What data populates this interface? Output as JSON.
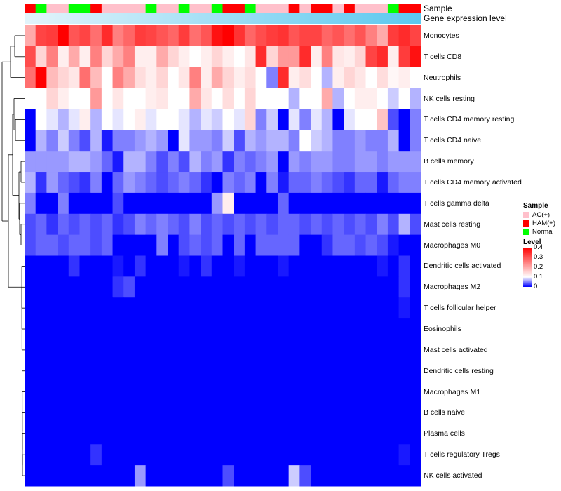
{
  "chart_data": {
    "type": "heatmap",
    "title": "",
    "annotation_tracks": [
      {
        "name": "Sample",
        "kind": "categorical"
      },
      {
        "name": "Gene expression level",
        "kind": "continuous"
      }
    ],
    "sample_groups": [
      {
        "name": "AC(+)",
        "color": "#ffc0cb"
      },
      {
        "name": "HAM(+)",
        "color": "#ff0000"
      },
      {
        "name": "Normal",
        "color": "#00ff00"
      }
    ],
    "sample_annotation": [
      "HAM(+)",
      "Normal",
      "AC(+)",
      "AC(+)",
      "Normal",
      "Normal",
      "HAM(+)",
      "AC(+)",
      "AC(+)",
      "AC(+)",
      "AC(+)",
      "Normal",
      "AC(+)",
      "AC(+)",
      "Normal",
      "AC(+)",
      "AC(+)",
      "Normal",
      "HAM(+)",
      "HAM(+)",
      "Normal",
      "AC(+)",
      "AC(+)",
      "AC(+)",
      "HAM(+)",
      "AC(+)",
      "HAM(+)",
      "HAM(+)",
      "AC(+)",
      "HAM(+)",
      "AC(+)",
      "AC(+)",
      "AC(+)",
      "Normal",
      "HAM(+)",
      "HAM(+)"
    ],
    "gene_expression_color": "#5bc8ef",
    "gene_expression_light": "#e3f4fb",
    "rows": [
      "Monocytes",
      "T cells CD8",
      "Neutrophils",
      "NK cells resting",
      "T cells CD4 memory resting",
      "T cells CD4 naive",
      "B cells memory",
      "T cells CD4 memory activated",
      "T cells gamma delta",
      "Mast cells resting",
      "Macrophages M0",
      "Dendritic cells activated",
      "Macrophages M2",
      "T cells follicular helper",
      "Eosinophils",
      "Mast cells activated",
      "Dendritic cells resting",
      "Macrophages M1",
      "B cells naive",
      "Plasma cells",
      "T cells regulatory  Tregs",
      "NK cells activated"
    ],
    "values": [
      [
        0.2,
        0.32,
        0.33,
        0.4,
        0.3,
        0.32,
        0.27,
        0.35,
        0.25,
        0.28,
        0.33,
        0.32,
        0.3,
        0.28,
        0.33,
        0.27,
        0.3,
        0.38,
        0.4,
        0.34,
        0.28,
        0.31,
        0.33,
        0.34,
        0.3,
        0.32,
        0.32,
        0.28,
        0.3,
        0.27,
        0.3,
        0.25,
        0.2,
        0.33,
        0.35,
        0.32
      ],
      [
        0.31,
        0.15,
        0.25,
        0.12,
        0.2,
        0.12,
        0.25,
        0.15,
        0.2,
        0.25,
        0.12,
        0.12,
        0.2,
        0.15,
        0.12,
        0.1,
        0.12,
        0.15,
        0.12,
        0.1,
        0.13,
        0.35,
        0.15,
        0.22,
        0.22,
        0.35,
        0.12,
        0.25,
        0.13,
        0.12,
        0.15,
        0.32,
        0.35,
        0.12,
        0.33,
        0.38
      ],
      [
        0.27,
        0.4,
        0.18,
        0.15,
        0.13,
        0.27,
        0.18,
        0.1,
        0.25,
        0.2,
        0.14,
        0.12,
        0.15,
        0.1,
        0.13,
        0.25,
        0.12,
        0.2,
        0.15,
        0.12,
        0.14,
        0.1,
        0.05,
        0.35,
        0.12,
        0.14,
        0.1,
        0.07,
        0.12,
        0.15,
        0.13,
        0.1,
        0.14,
        0.11,
        0.12,
        0.1
      ],
      [
        0.1,
        0.1,
        0.15,
        0.12,
        0.1,
        0.1,
        0.22,
        0.1,
        0.13,
        0.1,
        0.1,
        0.12,
        0.13,
        0.1,
        0.1,
        0.2,
        0.13,
        0.1,
        0.14,
        0.1,
        0.15,
        0.1,
        0.1,
        0.1,
        0.07,
        0.1,
        0.1,
        0.2,
        0.07,
        0.1,
        0.12,
        0.12,
        0.1,
        0.08,
        0.1,
        0.07
      ],
      [
        0.0,
        0.1,
        0.09,
        0.07,
        0.09,
        0.12,
        0.07,
        0.1,
        0.09,
        0.1,
        0.12,
        0.09,
        0.1,
        0.1,
        0.09,
        0.07,
        0.09,
        0.08,
        0.1,
        0.09,
        0.15,
        0.05,
        0.08,
        0.0,
        0.09,
        0.05,
        0.09,
        0.07,
        0.0,
        0.09,
        0.1,
        0.1,
        0.17,
        0.03,
        0.0,
        0.05
      ],
      [
        0.0,
        0.07,
        0.05,
        0.08,
        0.05,
        0.03,
        0.07,
        0.01,
        0.05,
        0.05,
        0.06,
        0.07,
        0.06,
        0.0,
        0.09,
        0.06,
        0.06,
        0.05,
        0.08,
        0.03,
        0.07,
        0.06,
        0.07,
        0.07,
        0.05,
        0.1,
        0.08,
        0.07,
        0.05,
        0.05,
        0.06,
        0.05,
        0.05,
        0.07,
        0.0,
        0.05
      ],
      [
        0.06,
        0.06,
        0.06,
        0.06,
        0.07,
        0.07,
        0.06,
        0.04,
        0.01,
        0.07,
        0.07,
        0.05,
        0.03,
        0.05,
        0.03,
        0.07,
        0.05,
        0.06,
        0.02,
        0.05,
        0.04,
        0.05,
        0.06,
        0.0,
        0.06,
        0.05,
        0.06,
        0.06,
        0.05,
        0.05,
        0.06,
        0.06,
        0.05,
        0.06,
        0.06,
        0.06
      ],
      [
        0.07,
        0.02,
        0.06,
        0.04,
        0.03,
        0.02,
        0.05,
        0.0,
        0.04,
        0.06,
        0.05,
        0.04,
        0.03,
        0.04,
        0.05,
        0.04,
        0.02,
        0.0,
        0.05,
        0.04,
        0.05,
        0.0,
        0.05,
        0.01,
        0.04,
        0.04,
        0.05,
        0.04,
        0.03,
        0.02,
        0.04,
        0.04,
        0.01,
        0.04,
        0.05,
        0.05
      ],
      [
        0.05,
        0.0,
        0.0,
        0.05,
        0.0,
        0.0,
        0.0,
        0.0,
        0.03,
        0.0,
        0.0,
        0.0,
        0.0,
        0.0,
        0.0,
        0.0,
        0.0,
        0.06,
        0.12,
        0.0,
        0.0,
        0.0,
        0.0,
        0.04,
        0.0,
        0.0,
        0.0,
        0.0,
        0.0,
        0.0,
        0.0,
        0.0,
        0.0,
        0.0,
        0.0,
        0.0
      ],
      [
        0.03,
        0.04,
        0.02,
        0.04,
        0.03,
        0.04,
        0.03,
        0.04,
        0.02,
        0.03,
        0.05,
        0.04,
        0.05,
        0.04,
        0.03,
        0.05,
        0.03,
        0.04,
        0.03,
        0.04,
        0.03,
        0.04,
        0.03,
        0.04,
        0.04,
        0.03,
        0.04,
        0.03,
        0.04,
        0.03,
        0.04,
        0.03,
        0.05,
        0.03,
        0.07,
        0.03
      ],
      [
        0.03,
        0.04,
        0.04,
        0.03,
        0.04,
        0.04,
        0.03,
        0.04,
        0.0,
        0.0,
        0.0,
        0.0,
        0.05,
        0.0,
        0.03,
        0.04,
        0.03,
        0.04,
        0.0,
        0.04,
        0.0,
        0.04,
        0.04,
        0.04,
        0.04,
        0.0,
        0.0,
        0.02,
        0.04,
        0.04,
        0.03,
        0.04,
        0.03,
        0.01,
        0.0,
        0.0
      ],
      [
        0.0,
        0.0,
        0.0,
        0.0,
        0.02,
        0.0,
        0.0,
        0.0,
        0.01,
        0.0,
        0.02,
        0.0,
        0.0,
        0.0,
        0.01,
        0.0,
        0.02,
        0.0,
        0.0,
        0.01,
        0.0,
        0.0,
        0.0,
        0.01,
        0.0,
        0.0,
        0.0,
        0.0,
        0.0,
        0.0,
        0.0,
        0.0,
        0.01,
        0.0,
        0.02,
        0.0
      ],
      [
        0.0,
        0.0,
        0.0,
        0.0,
        0.0,
        0.0,
        0.0,
        0.0,
        0.02,
        0.03,
        0.0,
        0.0,
        0.0,
        0.0,
        0.0,
        0.0,
        0.0,
        0.0,
        0.0,
        0.0,
        0.0,
        0.0,
        0.0,
        0.0,
        0.0,
        0.0,
        0.0,
        0.0,
        0.0,
        0.0,
        0.0,
        0.0,
        0.0,
        0.0,
        0.02,
        0.0
      ],
      [
        0,
        0,
        0,
        0,
        0,
        0,
        0,
        0,
        0,
        0,
        0,
        0,
        0,
        0,
        0,
        0,
        0,
        0,
        0,
        0,
        0,
        0,
        0,
        0,
        0,
        0,
        0,
        0,
        0,
        0,
        0,
        0,
        0,
        0,
        0.01,
        0
      ],
      [
        0,
        0,
        0,
        0,
        0,
        0,
        0,
        0,
        0,
        0,
        0,
        0,
        0,
        0,
        0,
        0,
        0,
        0,
        0,
        0,
        0,
        0,
        0,
        0,
        0,
        0,
        0,
        0,
        0,
        0,
        0,
        0,
        0,
        0,
        0,
        0
      ],
      [
        0,
        0,
        0,
        0,
        0,
        0,
        0,
        0,
        0,
        0,
        0,
        0,
        0,
        0,
        0,
        0,
        0,
        0,
        0,
        0,
        0,
        0,
        0,
        0,
        0,
        0,
        0,
        0,
        0,
        0,
        0,
        0,
        0,
        0,
        0,
        0
      ],
      [
        0,
        0,
        0,
        0,
        0,
        0,
        0,
        0,
        0,
        0,
        0,
        0,
        0,
        0,
        0,
        0,
        0,
        0,
        0,
        0,
        0,
        0,
        0,
        0,
        0,
        0,
        0,
        0,
        0,
        0,
        0,
        0,
        0,
        0,
        0,
        0
      ],
      [
        0,
        0,
        0,
        0,
        0,
        0,
        0,
        0,
        0,
        0,
        0,
        0,
        0,
        0,
        0,
        0,
        0,
        0,
        0,
        0,
        0,
        0,
        0,
        0,
        0,
        0,
        0,
        0,
        0,
        0,
        0,
        0,
        0,
        0,
        0,
        0
      ],
      [
        0,
        0,
        0,
        0,
        0,
        0,
        0,
        0,
        0,
        0,
        0,
        0,
        0,
        0,
        0,
        0,
        0,
        0,
        0,
        0,
        0,
        0,
        0,
        0,
        0,
        0,
        0,
        0,
        0,
        0,
        0,
        0,
        0,
        0,
        0,
        0
      ],
      [
        0,
        0,
        0,
        0,
        0,
        0,
        0,
        0,
        0,
        0,
        0,
        0,
        0,
        0,
        0,
        0,
        0,
        0,
        0,
        0,
        0,
        0,
        0,
        0,
        0,
        0,
        0,
        0,
        0,
        0,
        0,
        0,
        0,
        0,
        0,
        0
      ],
      [
        0,
        0,
        0,
        0,
        0,
        0,
        0.02,
        0,
        0,
        0,
        0,
        0,
        0,
        0,
        0,
        0,
        0,
        0,
        0,
        0,
        0,
        0,
        0,
        0,
        0,
        0,
        0,
        0,
        0,
        0,
        0,
        0,
        0,
        0,
        0.01,
        0
      ],
      [
        0.0,
        0.0,
        0.0,
        0.0,
        0.0,
        0.0,
        0.0,
        0.0,
        0.0,
        0.0,
        0.06,
        0.0,
        0.0,
        0.0,
        0.0,
        0.0,
        0.0,
        0.0,
        0.03,
        0.0,
        0.0,
        0.0,
        0.0,
        0.0,
        0.08,
        0.03,
        0.0,
        0.0,
        0.0,
        0.0,
        0.0,
        0.0,
        0.0,
        0.0,
        0.0,
        0.0
      ]
    ],
    "color_scale": {
      "name": "Level",
      "min": 0,
      "max": 0.4,
      "stops": [
        {
          "value": 0,
          "color": "#0000ff"
        },
        {
          "value": 0.1,
          "color": "#ffffff"
        },
        {
          "value": 0.4,
          "color": "#ff0000"
        }
      ],
      "ticks": [
        "0.4",
        "0.3",
        "0.2",
        "0.1",
        "0"
      ]
    },
    "legends": {
      "sample_title": "Sample",
      "level_title": "Level",
      "placement": "right"
    },
    "row_dendrogram": true,
    "column_dendrogram": false
  }
}
